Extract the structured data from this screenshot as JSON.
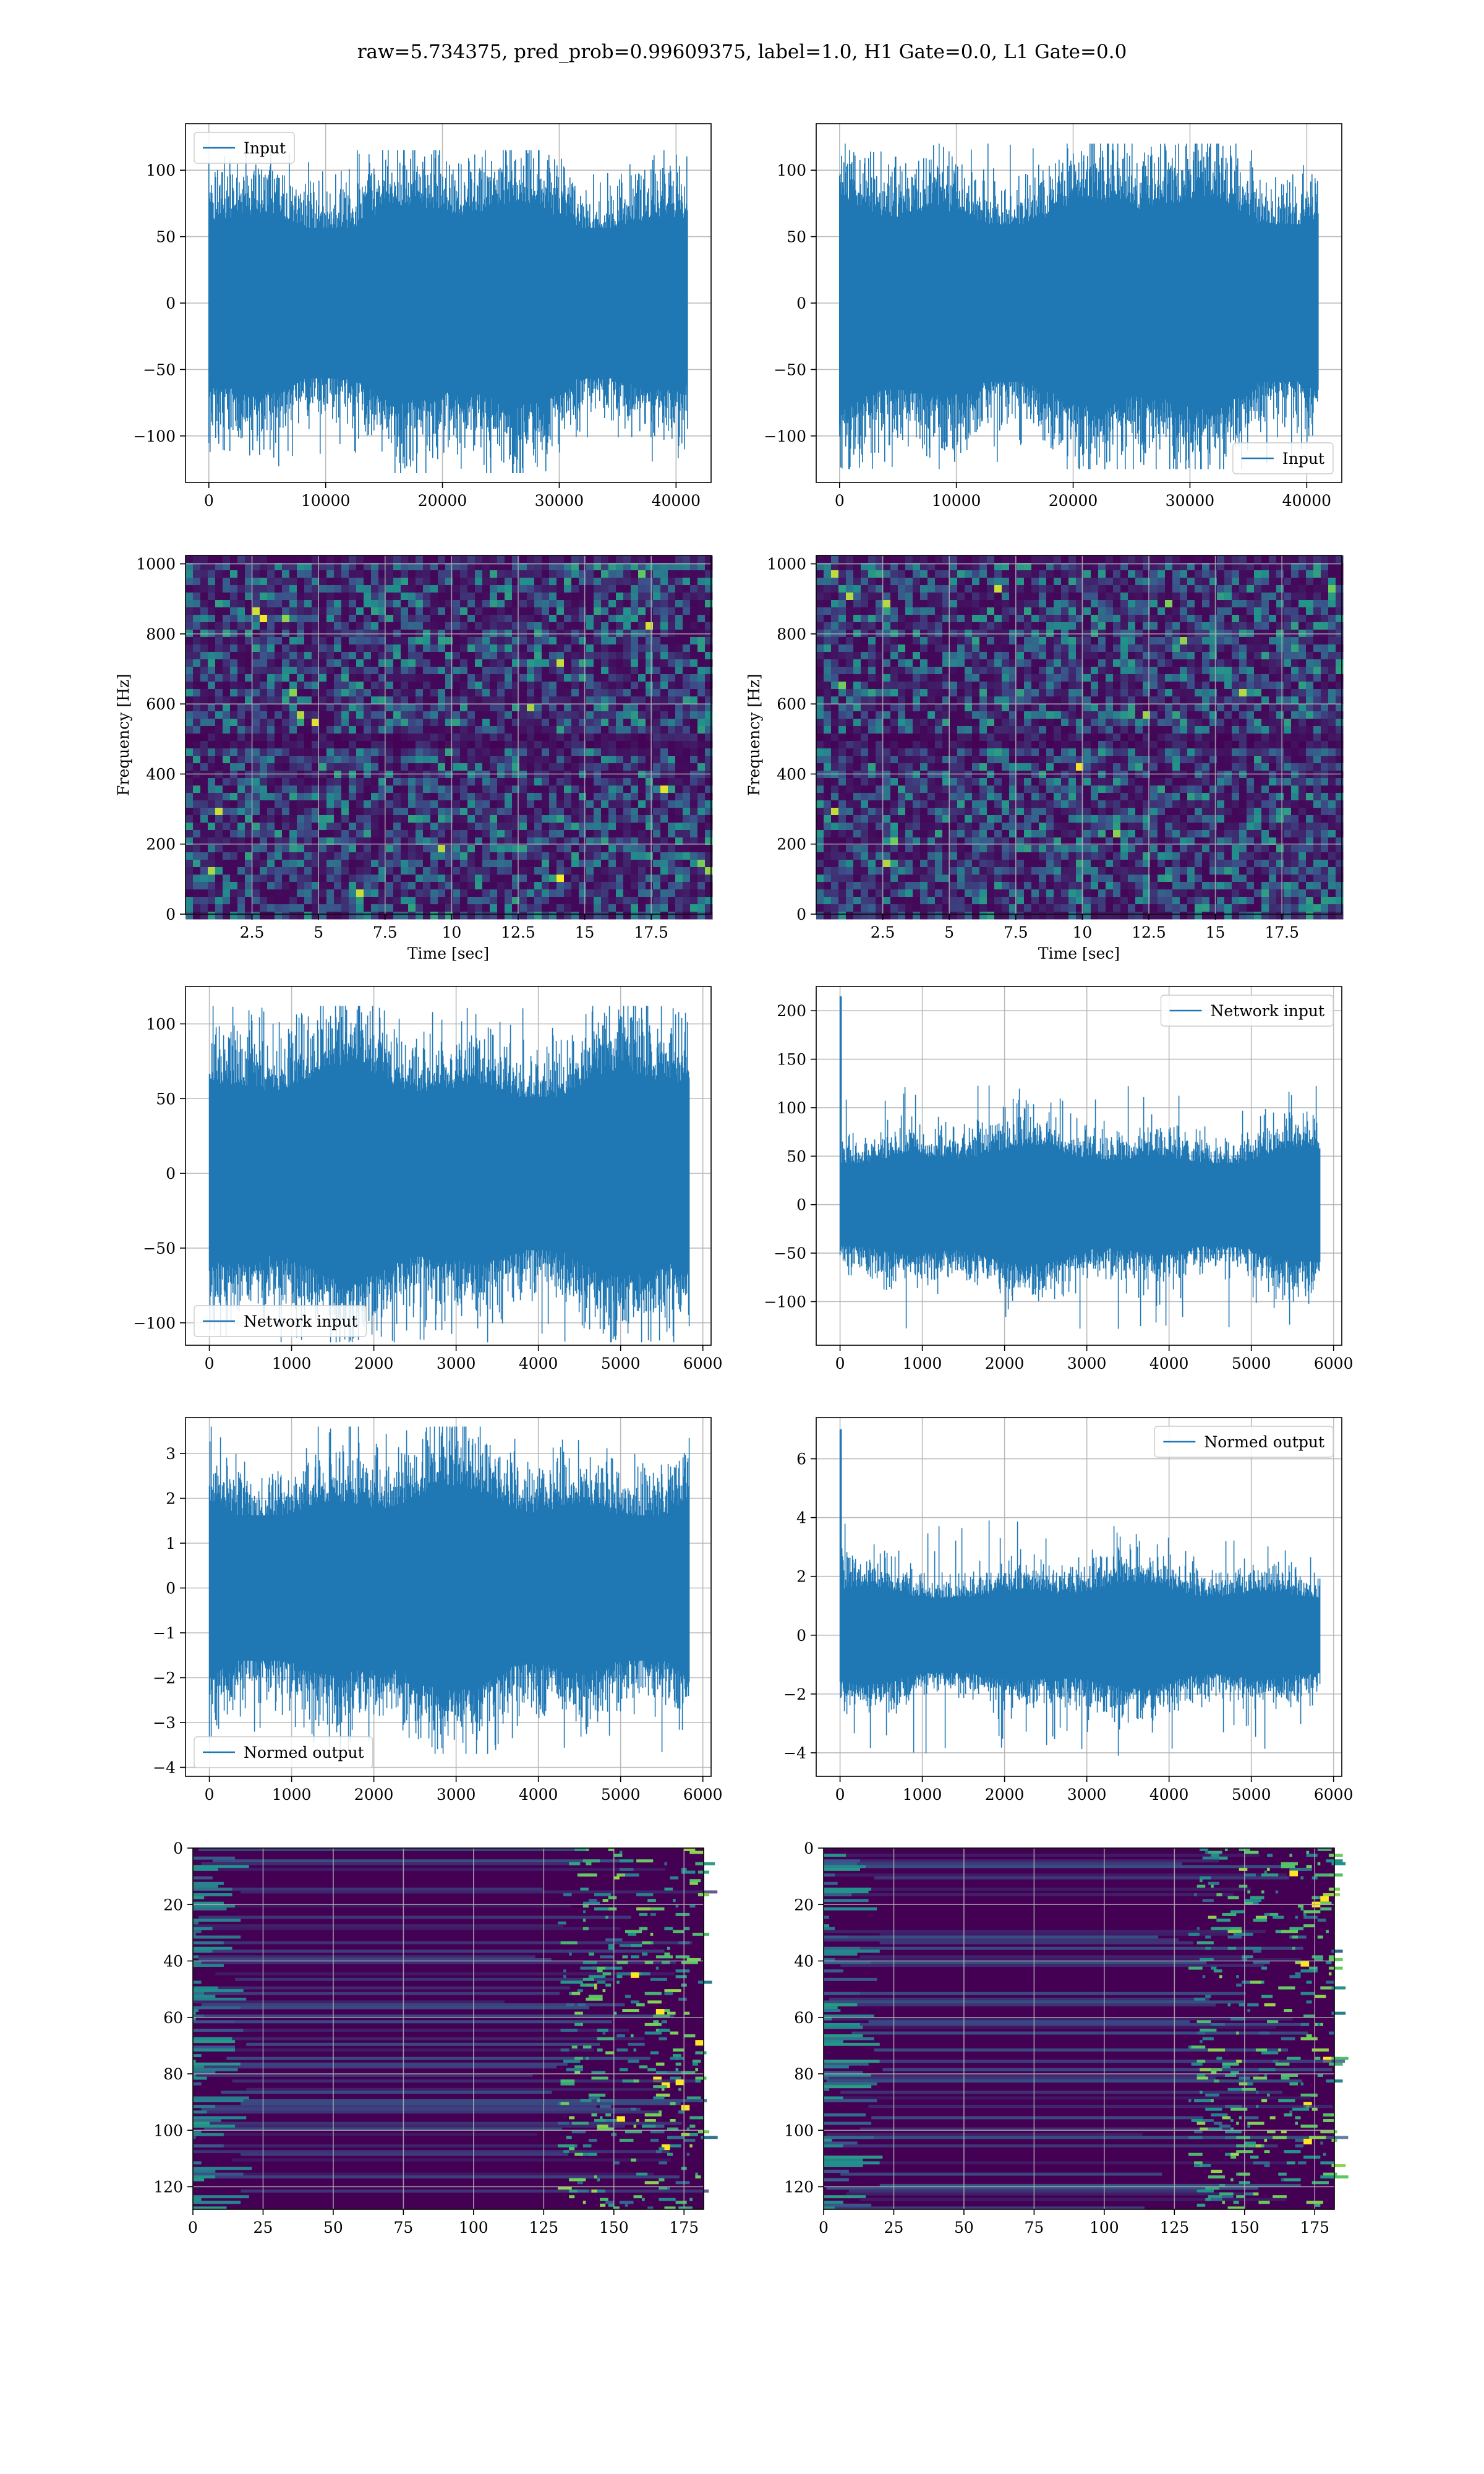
{
  "figure": {
    "suptitle": "raw=5.734375, pred_prob=0.99609375, label=1.0, H1 Gate=0.0, L1 Gate=0.0"
  },
  "colors": {
    "line": "#1f77b4",
    "grid": "#b0b0b0",
    "viridis_dark": "#440154",
    "viridis_mid": "#21918c",
    "viridis_bright": "#fde725"
  },
  "chart_data": [
    {
      "id": "input-h1",
      "type": "line",
      "domain": "time-series",
      "xlim": [
        -2000,
        43000
      ],
      "ylim": [
        -135,
        135
      ],
      "xticks": [
        0,
        10000,
        20000,
        30000,
        40000
      ],
      "yticks": [
        -100,
        -50,
        0,
        50,
        100
      ],
      "series": [
        {
          "name": "Input",
          "x_range": [
            0,
            40960
          ],
          "amplitude": 42,
          "peak_max": 115,
          "peak_min": -128,
          "spike_at_start": 0
        }
      ],
      "legend": {
        "label": "Input",
        "position": "upper-left"
      },
      "grid": true
    },
    {
      "id": "input-l1",
      "type": "line",
      "domain": "time-series",
      "xlim": [
        -2000,
        43000
      ],
      "ylim": [
        -135,
        135
      ],
      "xticks": [
        0,
        10000,
        20000,
        30000,
        40000
      ],
      "yticks": [
        -100,
        -50,
        0,
        50,
        100
      ],
      "series": [
        {
          "name": "Input",
          "x_range": [
            0,
            40960
          ],
          "amplitude": 44,
          "peak_max": 120,
          "peak_min": -125,
          "spike_at_start": 0
        }
      ],
      "legend": {
        "label": "Input",
        "position": "lower-right"
      },
      "grid": true
    },
    {
      "id": "spectrogram-h1",
      "type": "heatmap",
      "domain": "spectrogram",
      "xlim": [
        0,
        19.75
      ],
      "ylim": [
        0,
        1024
      ],
      "xticks": [
        2.5,
        5.0,
        7.5,
        10.0,
        12.5,
        15.0,
        17.5
      ],
      "yticks": [
        0,
        200,
        400,
        600,
        800,
        1000
      ],
      "xlabel": "Time [sec]",
      "ylabel": "Frequency [Hz]",
      "dark_band_hz": 500,
      "colormap": "viridis",
      "grid": true
    },
    {
      "id": "spectrogram-l1",
      "type": "heatmap",
      "domain": "spectrogram",
      "xlim": [
        0,
        19.75
      ],
      "ylim": [
        0,
        1024
      ],
      "xticks": [
        2.5,
        5.0,
        7.5,
        10.0,
        12.5,
        15.0,
        17.5
      ],
      "yticks": [
        0,
        200,
        400,
        600,
        800,
        1000
      ],
      "xlabel": "Time [sec]",
      "ylabel": "Frequency [Hz]",
      "dark_band_hz": 500,
      "colormap": "viridis",
      "grid": true
    },
    {
      "id": "network-input-h1",
      "type": "line",
      "domain": "time-series",
      "xlim": [
        -290,
        6100
      ],
      "ylim": [
        -115,
        125
      ],
      "xticks": [
        0,
        1000,
        2000,
        3000,
        4000,
        5000,
        6000
      ],
      "yticks": [
        -100,
        -50,
        0,
        50,
        100
      ],
      "series": [
        {
          "name": "Network input",
          "x_range": [
            0,
            5830
          ],
          "amplitude": 38,
          "peak_max": 112,
          "peak_min": -113,
          "spike_at_start": 0
        }
      ],
      "legend": {
        "label": "Network input",
        "position": "lower-left"
      },
      "grid": true
    },
    {
      "id": "network-input-l1",
      "type": "line",
      "domain": "time-series",
      "xlim": [
        -290,
        6100
      ],
      "ylim": [
        -145,
        225
      ],
      "xticks": [
        0,
        1000,
        2000,
        3000,
        4000,
        5000,
        6000
      ],
      "yticks": [
        -100,
        -50,
        0,
        50,
        100,
        150,
        200
      ],
      "series": [
        {
          "name": "Network input",
          "x_range": [
            0,
            5830
          ],
          "amplitude": 32,
          "peak_max": 123,
          "peak_min": -128,
          "spike_at_start": 215
        }
      ],
      "legend": {
        "label": "Network input",
        "position": "upper-right"
      },
      "grid": true
    },
    {
      "id": "normed-output-h1",
      "type": "line",
      "domain": "time-series",
      "xlim": [
        -290,
        6100
      ],
      "ylim": [
        -4.2,
        3.8
      ],
      "xticks": [
        0,
        1000,
        2000,
        3000,
        4000,
        5000,
        6000
      ],
      "yticks": [
        -4,
        -3,
        -2,
        -1,
        0,
        1,
        2,
        3
      ],
      "series": [
        {
          "name": "Normed output",
          "x_range": [
            0,
            5830
          ],
          "amplitude": 1.2,
          "peak_max": 3.6,
          "peak_min": -3.7,
          "spike_at_start": 0
        }
      ],
      "legend": {
        "label": "Normed output",
        "position": "lower-left"
      },
      "grid": true
    },
    {
      "id": "normed-output-l1",
      "type": "line",
      "domain": "time-series",
      "xlim": [
        -290,
        6100
      ],
      "ylim": [
        -4.8,
        7.4
      ],
      "xticks": [
        0,
        1000,
        2000,
        3000,
        4000,
        5000,
        6000
      ],
      "yticks": [
        -4,
        -2,
        0,
        2,
        4,
        6
      ],
      "series": [
        {
          "name": "Normed output",
          "x_range": [
            0,
            5830
          ],
          "amplitude": 0.95,
          "peak_max": 3.9,
          "peak_min": -4.1,
          "spike_at_start": 7.0
        }
      ],
      "legend": {
        "label": "Normed output",
        "position": "upper-right"
      },
      "grid": true
    },
    {
      "id": "feature-map-h1",
      "type": "heatmap",
      "domain": "feature-map",
      "xlim": [
        0,
        182
      ],
      "ylim": [
        128,
        0
      ],
      "xticks": [
        0,
        25,
        50,
        75,
        100,
        125,
        150,
        175
      ],
      "yticks": [
        0,
        20,
        40,
        60,
        80,
        100,
        120
      ],
      "colormap": "viridis",
      "grid": true
    },
    {
      "id": "feature-map-l1",
      "type": "heatmap",
      "domain": "feature-map",
      "xlim": [
        0,
        182
      ],
      "ylim": [
        128,
        0
      ],
      "xticks": [
        0,
        25,
        50,
        75,
        100,
        125,
        150,
        175
      ],
      "yticks": [
        0,
        20,
        40,
        60,
        80,
        100,
        120
      ],
      "colormap": "viridis",
      "grid": true
    }
  ]
}
